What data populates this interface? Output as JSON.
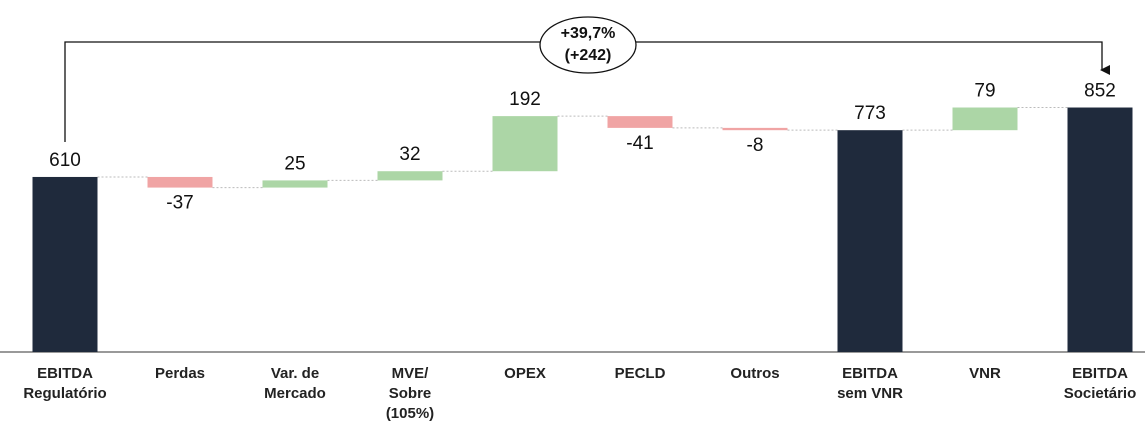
{
  "chart_data": {
    "type": "waterfall",
    "categories": [
      [
        "EBITDA",
        "Regulatório"
      ],
      [
        "Perdas"
      ],
      [
        "Var. de",
        "Mercado"
      ],
      [
        "MVE/",
        "Sobre",
        "(105%)"
      ],
      [
        "OPEX"
      ],
      [
        "PECLD"
      ],
      [
        "Outros"
      ],
      [
        "EBITDA",
        "sem VNR"
      ],
      [
        "VNR"
      ],
      [
        "EBITDA",
        "Societário"
      ]
    ],
    "values": [
      610,
      -37,
      25,
      32,
      192,
      -41,
      -8,
      773,
      79,
      852
    ],
    "total_indices": [
      0,
      7,
      9
    ],
    "colors": {
      "total": "#1f2a3c",
      "increase": "#acd6a6",
      "decrease": "#f0a4a4"
    },
    "ylim": [
      0,
      1150
    ],
    "annotation": [
      "+39,7%",
      "(+242)"
    ]
  }
}
